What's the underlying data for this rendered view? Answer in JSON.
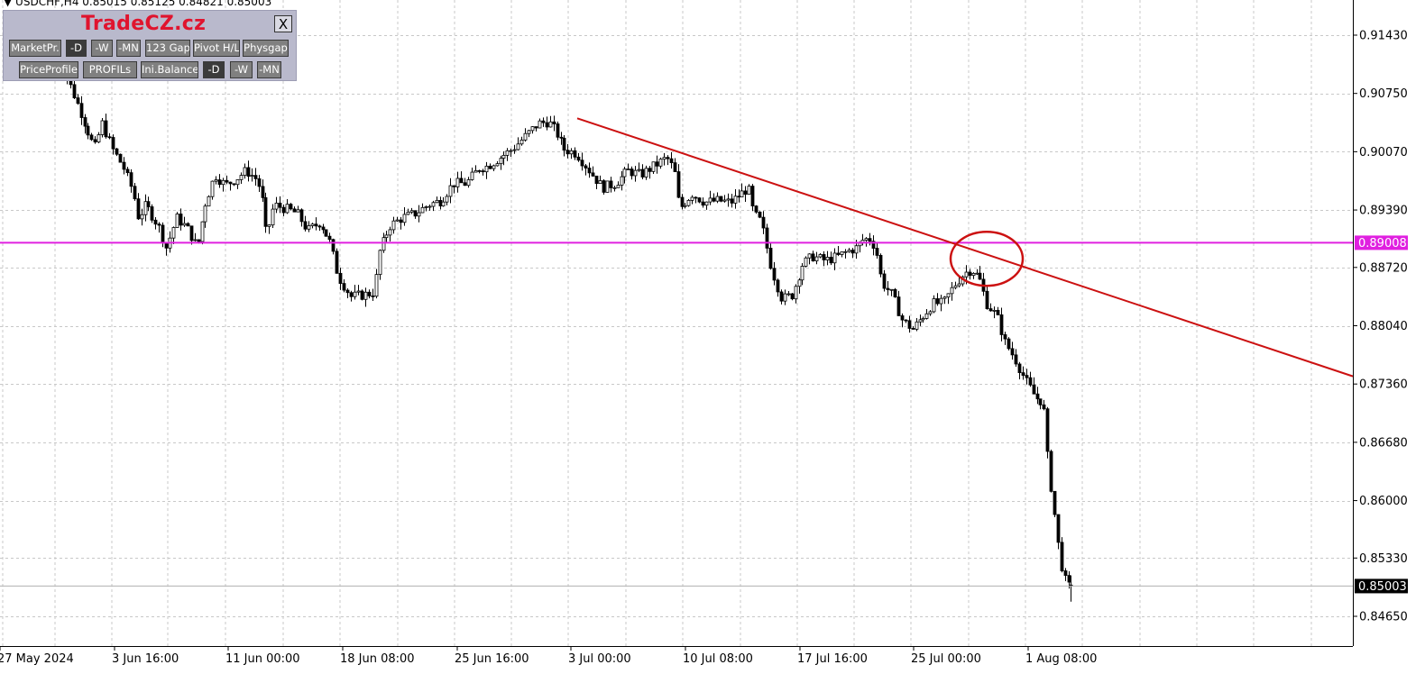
{
  "header": {
    "symbol_info": "USDCHF,H4  0.85015 0.85125 0.84821 0.85003"
  },
  "panel": {
    "title": "TradeCZ.cz",
    "close_label": "X",
    "row1": [
      "MarketPr.",
      "-D",
      "-W",
      "-MN",
      "123 Gap",
      "Pivot H/L",
      "Physgap"
    ],
    "row2": [
      "PriceProfile",
      "PROFILs",
      "Ini.Balance",
      "-D",
      "-W",
      "-MN"
    ]
  },
  "colors": {
    "background": "#ffffff",
    "grid": "#c8c8c8",
    "candle": "#000000",
    "horizontal_line": "#e020e0",
    "trendline": "#cc1111",
    "circle": "#cc1111",
    "panel_bg": "#b9b9cc",
    "title_red": "#e0142e"
  },
  "chart_data": {
    "type": "candlestick",
    "symbol": "USDCHF",
    "timeframe": "H4",
    "ohlc_last": {
      "open": 0.85015,
      "high": 0.85125,
      "low": 0.84821,
      "close": 0.85003
    },
    "y_ticks": [
      "0.91430",
      "0.90750",
      "0.90070",
      "0.89390",
      "0.88720",
      "0.88040",
      "0.87360",
      "0.86680",
      "0.86000",
      "0.85330",
      "0.84650"
    ],
    "ylim": [
      0.8435,
      0.918
    ],
    "x_ticks": [
      "27 May 2024",
      "3 Jun 16:00",
      "11 Jun 00:00",
      "18 Jun 08:00",
      "25 Jun 16:00",
      "3 Jul 00:00",
      "10 Jul 08:00",
      "17 Jul 16:00",
      "25 Jul 00:00",
      "1 Aug 08:00"
    ],
    "horizontal_line": {
      "price": 0.89008,
      "label": "0.89008"
    },
    "current_price": {
      "price": 0.85003,
      "label": "0.85003"
    },
    "trendline": {
      "start": {
        "time": "3 Jul 00:00",
        "price": 0.9046
      },
      "end": {
        "time": "right edge",
        "price": 0.8745
      }
    },
    "circle_annotation": {
      "time": "26 Jul",
      "price": 0.888
    },
    "close_path": [
      [
        0,
        0.913
      ],
      [
        0.4,
        0.9095
      ],
      [
        1.0,
        0.905
      ],
      [
        1.5,
        0.901
      ],
      [
        1.8,
        0.904
      ],
      [
        2.2,
        0.901
      ],
      [
        2.6,
        0.899
      ],
      [
        3.0,
        0.896
      ],
      [
        3.2,
        0.893
      ],
      [
        3.5,
        0.8945
      ],
      [
        4.0,
        0.892
      ],
      [
        4.3,
        0.8895
      ],
      [
        4.7,
        0.893
      ],
      [
        5.1,
        0.8918
      ],
      [
        5.5,
        0.8895
      ],
      [
        5.8,
        0.8945
      ],
      [
        6.2,
        0.898
      ],
      [
        6.6,
        0.8968
      ],
      [
        7.0,
        0.8975
      ],
      [
        7.4,
        0.8985
      ],
      [
        7.8,
        0.8975
      ],
      [
        8.0,
        0.896
      ],
      [
        8.2,
        0.8908
      ],
      [
        8.5,
        0.8945
      ],
      [
        9.0,
        0.894
      ],
      [
        9.4,
        0.8935
      ],
      [
        9.8,
        0.8915
      ],
      [
        10.3,
        0.8925
      ],
      [
        10.7,
        0.89
      ],
      [
        11.0,
        0.8862
      ],
      [
        11.5,
        0.8838
      ],
      [
        12.0,
        0.884
      ],
      [
        12.4,
        0.8843
      ],
      [
        12.6,
        0.889
      ],
      [
        13.0,
        0.892
      ],
      [
        13.5,
        0.893
      ],
      [
        14.0,
        0.8935
      ],
      [
        14.5,
        0.8945
      ],
      [
        15.0,
        0.895
      ],
      [
        15.5,
        0.897
      ],
      [
        16.0,
        0.897
      ],
      [
        16.5,
        0.8988
      ],
      [
        16.8,
        0.899
      ],
      [
        17.2,
        0.8998
      ],
      [
        17.8,
        0.901
      ],
      [
        18.3,
        0.9025
      ],
      [
        18.8,
        0.904
      ],
      [
        19.2,
        0.9042
      ],
      [
        19.5,
        0.903
      ],
      [
        19.8,
        0.901
      ],
      [
        20.3,
        0.9005
      ],
      [
        20.8,
        0.8985
      ],
      [
        21.3,
        0.8965
      ],
      [
        21.8,
        0.897
      ],
      [
        22.3,
        0.8985
      ],
      [
        22.8,
        0.898
      ],
      [
        23.3,
        0.899
      ],
      [
        23.8,
        0.9
      ],
      [
        24.1,
        0.8985
      ],
      [
        24.3,
        0.894
      ],
      [
        24.8,
        0.8958
      ],
      [
        25.3,
        0.8948
      ],
      [
        25.8,
        0.895
      ],
      [
        26.3,
        0.8948
      ],
      [
        26.8,
        0.896
      ],
      [
        27.0,
        0.8965
      ],
      [
        27.2,
        0.8935
      ],
      [
        27.5,
        0.8925
      ],
      [
        27.9,
        0.887
      ],
      [
        28.3,
        0.8835
      ],
      [
        28.7,
        0.884
      ],
      [
        29.1,
        0.8875
      ],
      [
        29.5,
        0.8885
      ],
      [
        30.0,
        0.888
      ],
      [
        30.5,
        0.8885
      ],
      [
        30.8,
        0.889
      ],
      [
        31.2,
        0.8895
      ],
      [
        31.5,
        0.8905
      ],
      [
        31.8,
        0.8905
      ],
      [
        32.0,
        0.889
      ],
      [
        32.2,
        0.8855
      ],
      [
        32.6,
        0.884
      ],
      [
        33.0,
        0.881
      ],
      [
        33.4,
        0.88
      ],
      [
        33.8,
        0.8815
      ],
      [
        34.2,
        0.883
      ],
      [
        34.6,
        0.883
      ],
      [
        35.0,
        0.885
      ],
      [
        35.4,
        0.8865
      ],
      [
        35.7,
        0.887
      ],
      [
        36.0,
        0.886
      ],
      [
        36.3,
        0.883
      ],
      [
        36.7,
        0.8815
      ],
      [
        37.0,
        0.8785
      ],
      [
        37.4,
        0.8765
      ],
      [
        37.8,
        0.874
      ],
      [
        38.2,
        0.872
      ],
      [
        38.5,
        0.8715
      ],
      [
        38.7,
        0.864
      ],
      [
        38.9,
        0.8595
      ],
      [
        39.1,
        0.8545
      ],
      [
        39.3,
        0.851
      ],
      [
        39.5,
        0.85
      ]
    ]
  }
}
